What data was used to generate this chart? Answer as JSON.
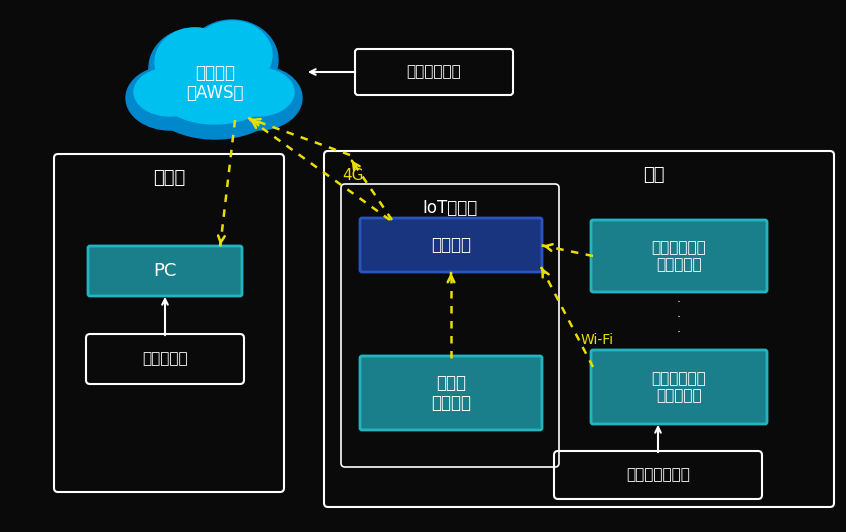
{
  "bg_color": "#0a0a0a",
  "white": "#ffffff",
  "yellow": "#e8de00",
  "teal_fill": "#1a7f8a",
  "teal_border": "#22b5c0",
  "blue_fill": "#1a3580",
  "blue_border": "#2a55c0",
  "cloud_dark": "#0088cc",
  "cloud_light": "#00c0f0",
  "cloud_label": "クラウド\n（AWS）",
  "db_label": "データベース",
  "jigyo_label": "事業所",
  "pc_label": "PC",
  "data_label": "データ閲覧",
  "noen_label": "農園",
  "iot_label": "IoT基地局",
  "router_label": "ルーター",
  "kichi_label": "基地局\nマイコン",
  "sensor1_label": "土壌センサー\nモジュール",
  "sensor2_label": "土壌センサー\nモジュール",
  "soil_label": "土壌データ取得",
  "wifi_label": "Wi-Fi",
  "fg_label": "4G",
  "dots_label": "・\n・\n・"
}
